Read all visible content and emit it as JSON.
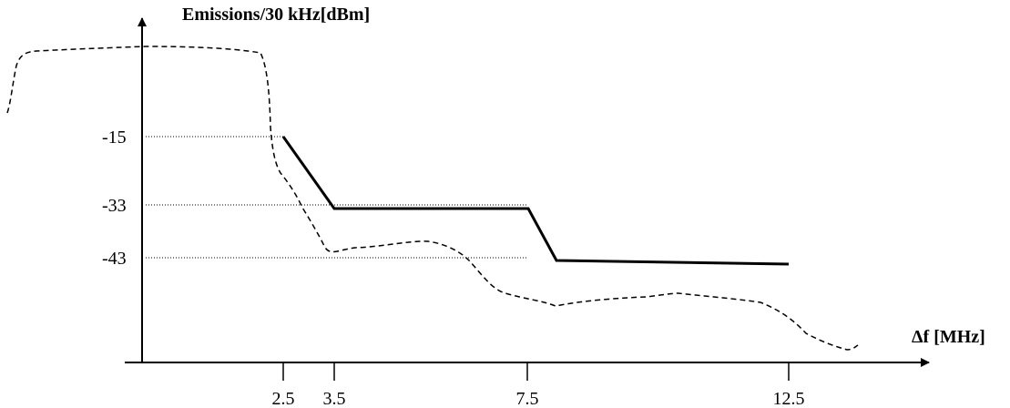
{
  "diagram": {
    "y_axis_title": "Emissions/30 kHz[dBm]",
    "x_axis_title": "Δf [MHz]",
    "y_ticks": [
      "-15",
      "-33",
      "-43"
    ],
    "x_ticks": [
      "2.5",
      "3.5",
      "7.5",
      "12.5"
    ],
    "mask_line": {
      "style": "solid",
      "color": "#000000",
      "points": [
        [
          2.5,
          -15
        ],
        [
          3.5,
          -33
        ],
        [
          7.5,
          -33
        ],
        [
          8,
          -43
        ],
        [
          12.5,
          -43
        ]
      ]
    },
    "emission_curve": {
      "style": "dashed",
      "color": "#000000"
    },
    "reference_lines": {
      "style": "dotted",
      "levels": [
        -15,
        -33,
        -43
      ]
    }
  }
}
